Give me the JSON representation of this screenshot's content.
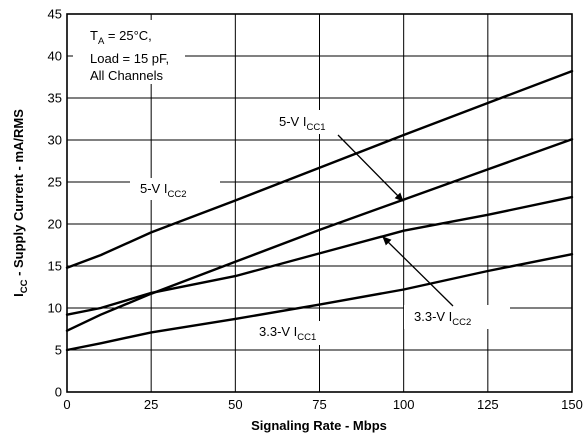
{
  "chart_data": {
    "type": "line",
    "title": "",
    "xlabel": "Signaling Rate - Mbps",
    "ylabel": {
      "main": "I",
      "sub": "CC",
      "rest": " - Supply Current - mA/RMS"
    },
    "xlim": [
      0,
      150
    ],
    "ylim": [
      0,
      45
    ],
    "xticks": [
      0,
      25,
      50,
      75,
      100,
      125,
      150
    ],
    "yticks": [
      0,
      5,
      10,
      15,
      20,
      25,
      30,
      35,
      40,
      45
    ],
    "grid": true,
    "conditions": {
      "line1": {
        "main": "T",
        "sub": "A",
        "rest": " = 25°C,"
      },
      "line2": "Load = 15 pF,",
      "line3": "All Channels"
    },
    "series": [
      {
        "name": {
          "main": "5-V I",
          "sub": "CC2"
        },
        "x": [
          0,
          10,
          25,
          50,
          75,
          100,
          125,
          150
        ],
        "y": [
          14.8,
          16.3,
          19.0,
          22.8,
          26.7,
          30.6,
          34.4,
          38.2
        ]
      },
      {
        "name": {
          "main": "5-V I",
          "sub": "CC1"
        },
        "x": [
          0,
          10,
          25,
          50,
          75,
          100,
          125,
          150
        ],
        "y": [
          7.3,
          9.2,
          11.7,
          15.5,
          19.3,
          22.9,
          26.5,
          30.1
        ]
      },
      {
        "name": {
          "main": "3.3-V I",
          "sub": "CC2"
        },
        "x": [
          0,
          10,
          25,
          50,
          75,
          100,
          125,
          150
        ],
        "y": [
          9.2,
          10.0,
          11.8,
          13.8,
          16.5,
          19.2,
          21.1,
          23.2
        ]
      },
      {
        "name": {
          "main": "3.3-V I",
          "sub": "CC1"
        },
        "x": [
          0,
          10,
          25,
          50,
          75,
          100,
          125,
          150
        ],
        "y": [
          5.0,
          5.8,
          7.1,
          8.7,
          10.4,
          12.2,
          14.4,
          16.4
        ]
      }
    ],
    "colors": {
      "line": "#000000",
      "grid": "#000000",
      "background": "#ffffff"
    }
  }
}
